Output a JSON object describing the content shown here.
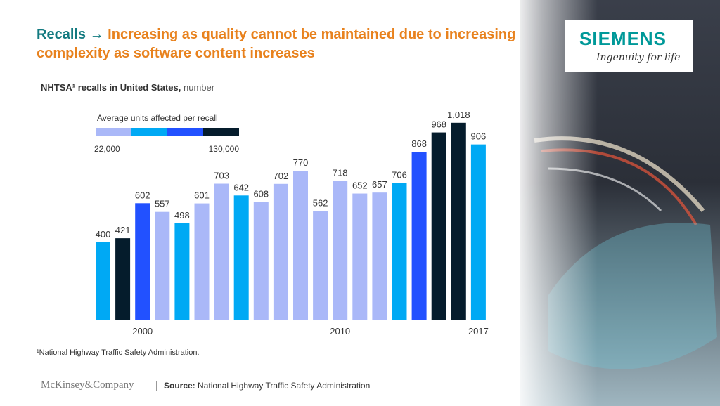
{
  "header": {
    "title_lead": "Recalls →",
    "title_rest": "Increasing as quality cannot be maintained due to increasing complexity as software content increases",
    "logo": "SIEMENS",
    "tagline": "Ingenuity for life"
  },
  "chart_data": {
    "type": "bar",
    "subtitle": "NHTSA¹ recalls in United States,",
    "subtitle_unit": "number",
    "categories": [
      null,
      null,
      "2000",
      null,
      null,
      null,
      null,
      null,
      null,
      null,
      null,
      null,
      "2010",
      null,
      null,
      null,
      null,
      null,
      null,
      "2017"
    ],
    "values": [
      400,
      421,
      602,
      557,
      498,
      601,
      703,
      642,
      608,
      702,
      770,
      562,
      718,
      652,
      657,
      706,
      868,
      968,
      1018,
      906
    ],
    "value_labels": [
      "400",
      "421",
      "602",
      "557",
      "498",
      "601",
      "703",
      "642",
      "608",
      "702",
      "770",
      "562",
      "718",
      "652",
      "657",
      "706",
      "868",
      "968",
      "1,018",
      "906"
    ],
    "colors": [
      "#00a9f4",
      "#051c2c",
      "#2251ff",
      "#aab8f8",
      "#00a9f4",
      "#aab8f8",
      "#aab8f8",
      "#00a9f4",
      "#aab8f8",
      "#aab8f8",
      "#aab8f8",
      "#aab8f8",
      "#aab8f8",
      "#aab8f8",
      "#aab8f8",
      "#00a9f4",
      "#2251ff",
      "#051c2c",
      "#051c2c",
      "#00a9f4"
    ],
    "ylim": [
      0,
      1050
    ],
    "legend": {
      "title": "Average units affected per recall",
      "colors": [
        "#aab8f8",
        "#00a9f4",
        "#2251ff",
        "#051c2c"
      ],
      "scale": [
        {
          "value": 22000,
          "label": "22,000"
        },
        {
          "value": 130000,
          "label": "130,000"
        }
      ]
    }
  },
  "footnote": "¹National Highway Traffic Safety Administration.",
  "footer": {
    "brand": "McKinsey&Company",
    "source_label": "Source:",
    "source": "National Highway Traffic Safety Administration"
  }
}
